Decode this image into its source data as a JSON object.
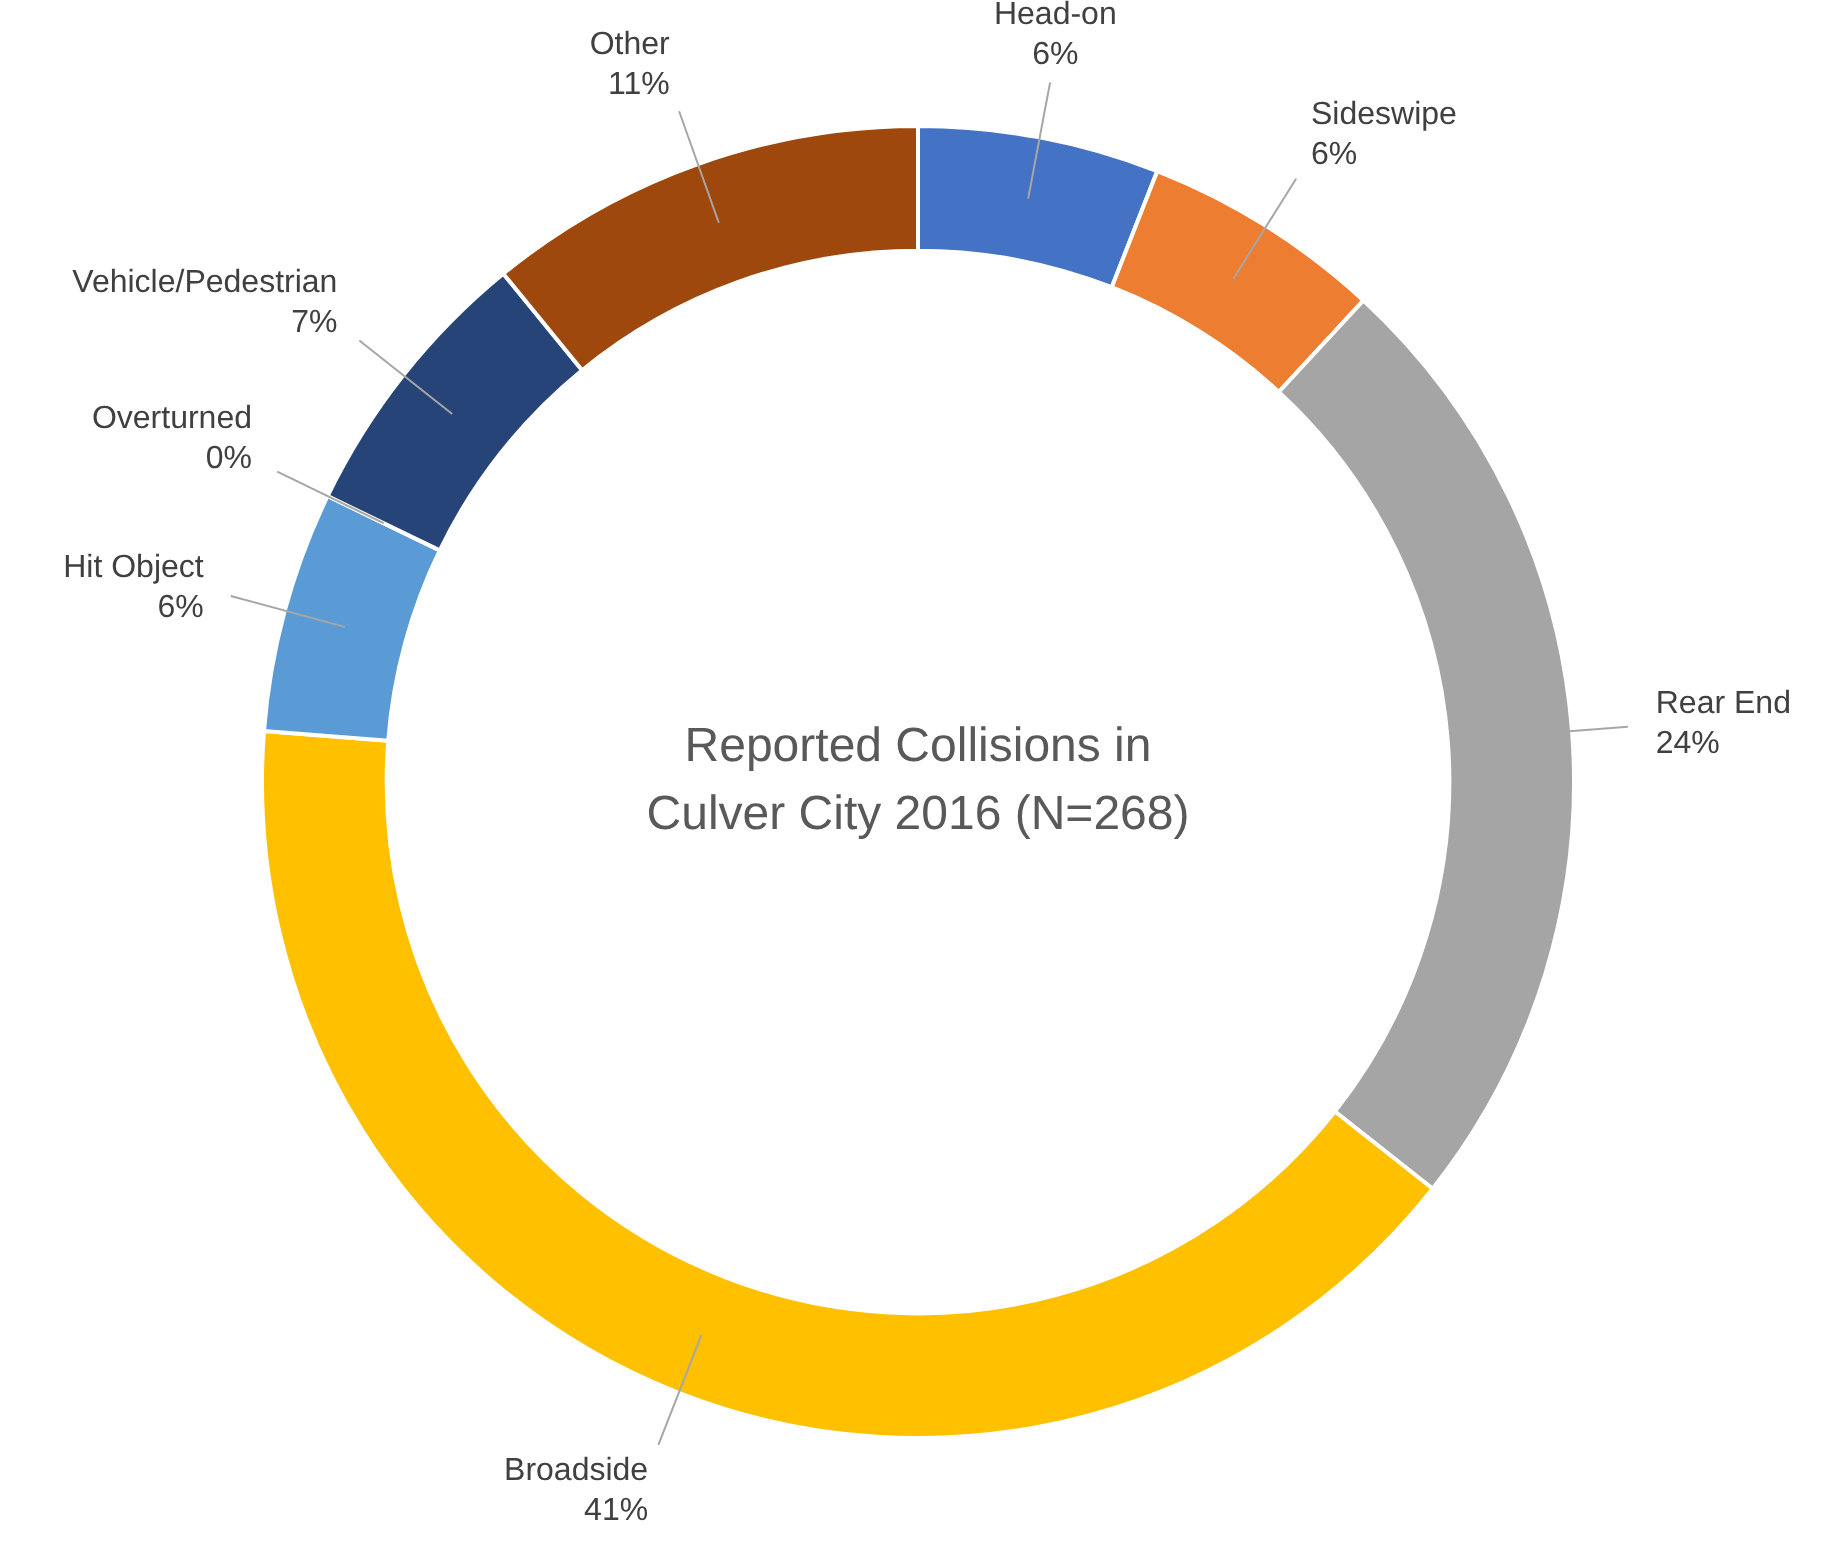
{
  "chart_data": {
    "type": "donut",
    "title": "Reported Collisions in Culver City 2016 (N=268)",
    "categories": [
      "Head-on",
      "Sideswipe",
      "Rear End",
      "Broadside",
      "Hit Object",
      "Overturned",
      "Vehicle/Pedestrian",
      "Other"
    ],
    "values": [
      6,
      6,
      24,
      41,
      6,
      0,
      7,
      11
    ],
    "value_labels": [
      "6%",
      "6%",
      "24%",
      "41%",
      "6%",
      "0%",
      "7%",
      "11%"
    ],
    "colors": [
      "#4472c4",
      "#ed7d31",
      "#a5a5a5",
      "#ffc000",
      "#5b9bd5",
      "#70ad47",
      "#264478",
      "#9e480e"
    ],
    "legend": false
  }
}
